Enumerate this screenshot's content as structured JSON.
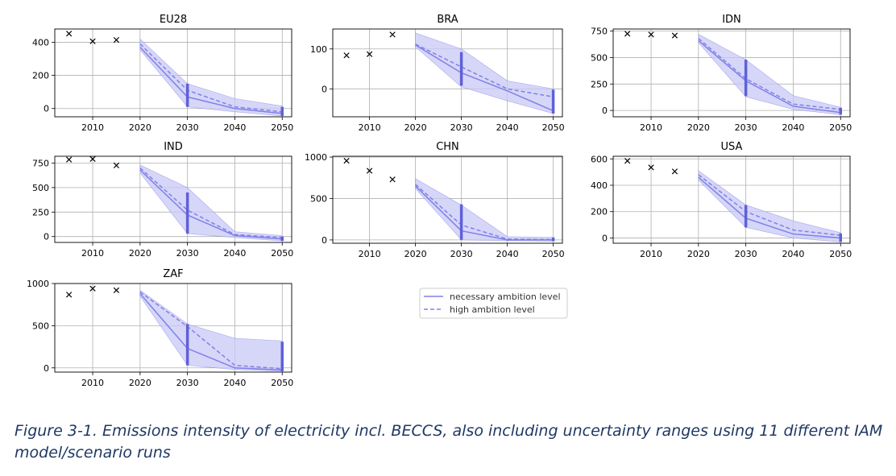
{
  "caption": "Figure 3-1. Emissions intensity of electricity incl. BECCS, also including uncertainty ranges using 11 different IAM model/scenario runs",
  "legend": {
    "necessary": "necessary ambition level",
    "high": "high ambition level"
  },
  "colors": {
    "band": "#c8c8f5",
    "line": "#8080e8",
    "bar": "#6060d8",
    "marker": "#000000",
    "grid": "#b0b0b0"
  },
  "chart_data": [
    {
      "type": "line",
      "title": "EU28",
      "xlim": [
        2002,
        2052
      ],
      "ylim": [
        -50,
        480
      ],
      "yticks": [
        0,
        200,
        400
      ],
      "xticks": [
        2010,
        2020,
        2030,
        2040,
        2050
      ],
      "historical": {
        "x": [
          2005,
          2010,
          2015
        ],
        "y": [
          452,
          406,
          414
        ]
      },
      "years": [
        2020,
        2030,
        2040,
        2050
      ],
      "necessary": [
        370,
        70,
        0,
        -30
      ],
      "high": [
        390,
        110,
        10,
        -20
      ],
      "low": [
        355,
        10,
        -20,
        -45
      ],
      "upper": [
        420,
        150,
        60,
        15
      ],
      "bars": {
        "2030": [
          10,
          150
        ],
        "2050": [
          -45,
          10
        ]
      }
    },
    {
      "type": "line",
      "title": "BRA",
      "xlim": [
        2002,
        2052
      ],
      "ylim": [
        -70,
        150
      ],
      "yticks": [
        0,
        100
      ],
      "xticks": [
        2010,
        2020,
        2030,
        2040,
        2050
      ],
      "historical": {
        "x": [
          2005,
          2010,
          2015
        ],
        "y": [
          84,
          87,
          136
        ]
      },
      "years": [
        2020,
        2030,
        2040,
        2050
      ],
      "necessary": [
        110,
        40,
        -5,
        -55
      ],
      "high": [
        112,
        55,
        0,
        -20
      ],
      "low": [
        105,
        5,
        -30,
        -62
      ],
      "upper": [
        140,
        100,
        20,
        0
      ],
      "bars": {
        "2030": [
          8,
          92
        ],
        "2050": [
          -62,
          -2
        ]
      }
    },
    {
      "type": "line",
      "title": "IDN",
      "xlim": [
        2002,
        2052
      ],
      "ylim": [
        -60,
        770
      ],
      "yticks": [
        0,
        250,
        500,
        750
      ],
      "xticks": [
        2010,
        2020,
        2030,
        2040,
        2050
      ],
      "historical": {
        "x": [
          2005,
          2010,
          2015
        ],
        "y": [
          725,
          718,
          708
        ]
      },
      "years": [
        2020,
        2030,
        2040,
        2050
      ],
      "necessary": [
        660,
        280,
        40,
        -20
      ],
      "high": [
        680,
        300,
        60,
        10
      ],
      "low": [
        640,
        130,
        10,
        -40
      ],
      "upper": [
        720,
        480,
        140,
        30
      ],
      "bars": {
        "2030": [
          135,
          480
        ],
        "2050": [
          -40,
          25
        ]
      }
    },
    {
      "type": "line",
      "title": "IND",
      "xlim": [
        2002,
        2052
      ],
      "ylim": [
        -60,
        820
      ],
      "yticks": [
        0,
        250,
        500,
        750
      ],
      "xticks": [
        2010,
        2020,
        2030,
        2040,
        2050
      ],
      "historical": {
        "x": [
          2005,
          2010,
          2015
        ],
        "y": [
          786,
          792,
          726
        ]
      },
      "years": [
        2020,
        2030,
        2040,
        2050
      ],
      "necessary": [
        680,
        220,
        10,
        -25
      ],
      "high": [
        700,
        270,
        20,
        -10
      ],
      "low": [
        650,
        30,
        -10,
        -45
      ],
      "upper": [
        730,
        500,
        50,
        10
      ],
      "bars": {
        "2030": [
          30,
          450
        ],
        "2050": [
          -45,
          0
        ]
      }
    },
    {
      "type": "line",
      "title": "CHN",
      "xlim": [
        2002,
        2052
      ],
      "ylim": [
        -40,
        1010
      ],
      "yticks": [
        0,
        500,
        1000
      ],
      "xticks": [
        2010,
        2020,
        2030,
        2040,
        2050
      ],
      "historical": {
        "x": [
          2005,
          2010,
          2015
        ],
        "y": [
          955,
          835,
          730
        ]
      },
      "years": [
        2020,
        2030,
        2040,
        2050
      ],
      "necessary": [
        650,
        110,
        0,
        0
      ],
      "high": [
        670,
        180,
        10,
        5
      ],
      "low": [
        620,
        0,
        -10,
        -15
      ],
      "upper": [
        740,
        420,
        40,
        30
      ],
      "bars": {
        "2030": [
          0,
          430
        ],
        "2050": [
          -15,
          30
        ]
      }
    },
    {
      "type": "line",
      "title": "USA",
      "xlim": [
        2002,
        2052
      ],
      "ylim": [
        -40,
        620
      ],
      "yticks": [
        0,
        200,
        400,
        600
      ],
      "xticks": [
        2010,
        2020,
        2030,
        2040,
        2050
      ],
      "historical": {
        "x": [
          2005,
          2010,
          2015
        ],
        "y": [
          585,
          535,
          505
        ]
      },
      "years": [
        2020,
        2030,
        2040,
        2050
      ],
      "necessary": [
        460,
        150,
        30,
        0
      ],
      "high": [
        480,
        200,
        60,
        20
      ],
      "low": [
        440,
        80,
        0,
        -30
      ],
      "upper": [
        510,
        250,
        130,
        40
      ],
      "bars": {
        "2030": [
          80,
          250
        ],
        "2050": [
          -30,
          35
        ]
      }
    },
    {
      "type": "line",
      "title": "ZAF",
      "xlim": [
        2002,
        2052
      ],
      "ylim": [
        -50,
        1000
      ],
      "yticks": [
        0,
        500,
        1000
      ],
      "xticks": [
        2010,
        2020,
        2030,
        2040,
        2050
      ],
      "historical": {
        "x": [
          2005,
          2010,
          2015
        ],
        "y": [
          868,
          940,
          920
        ]
      },
      "years": [
        2020,
        2030,
        2040,
        2050
      ],
      "necessary": [
        880,
        230,
        0,
        -25
      ],
      "high": [
        900,
        490,
        30,
        -10
      ],
      "low": [
        850,
        30,
        -20,
        -40
      ],
      "upper": [
        920,
        520,
        350,
        320
      ],
      "bars": {
        "2030": [
          30,
          520
        ],
        "2050": [
          -40,
          310
        ]
      }
    }
  ]
}
